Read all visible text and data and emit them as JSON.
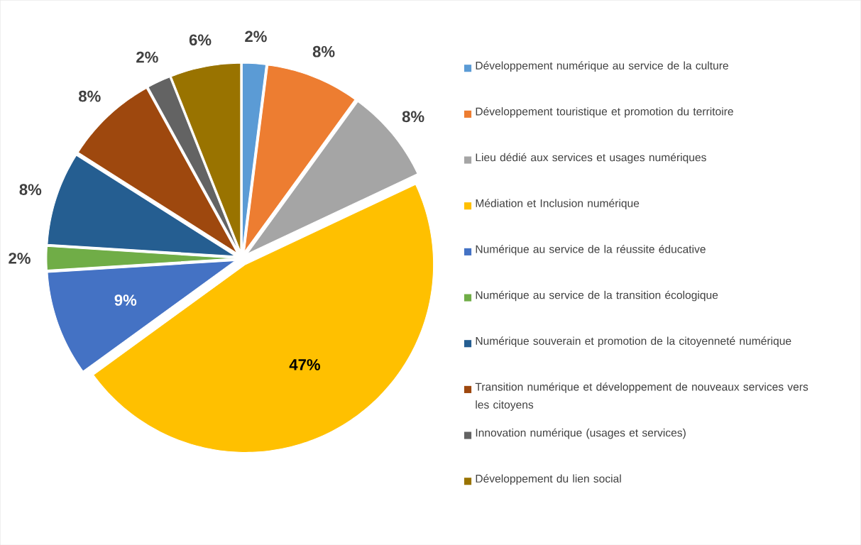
{
  "chart_data": {
    "type": "pie",
    "categories": [
      "Développement numérique au service de la culture",
      "Développement touristique et promotion du territoire",
      "Lieu dédié aux services et usages numériques",
      "Médiation et Inclusion numérique",
      "Numérique au service de la réussite éducative",
      "Numérique au service de la transition écologique",
      "Numérique souverain et promotion de la citoyenneté numérique",
      "Transition numérique et développement de nouveaux services vers les citoyens",
      "Innovation numérique (usages et services)",
      "Développement du lien social"
    ],
    "values": [
      2,
      8,
      8,
      47,
      9,
      2,
      8,
      8,
      2,
      6
    ],
    "colors": [
      "#5b9bd5",
      "#ed7d31",
      "#a5a5a5",
      "#ffc000",
      "#4472c4",
      "#70ad47",
      "#255e91",
      "#9e480e",
      "#636363",
      "#997300"
    ],
    "value_labels": [
      "2%",
      "8%",
      "8%",
      "47%",
      "9%",
      "2%",
      "8%",
      "8%",
      "2%",
      "6%"
    ],
    "legend": "right"
  }
}
